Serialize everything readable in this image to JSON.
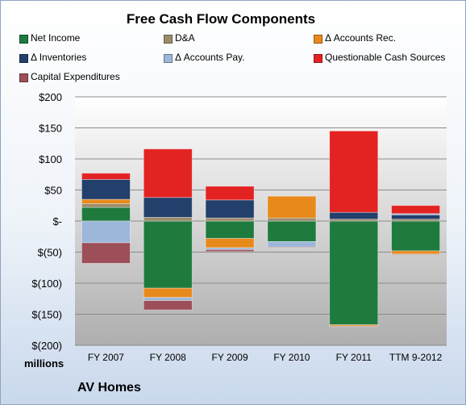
{
  "chart_data": {
    "type": "bar",
    "stacked": true,
    "title": "Free Cash Flow Components",
    "categories": [
      "FY 2007",
      "FY 2008",
      "FY 2009",
      "FY 2010",
      "FY 2011",
      "TTM 9-2012"
    ],
    "ylim": [
      -200,
      200
    ],
    "yticks": [
      200,
      150,
      100,
      50,
      0,
      -50,
      -100,
      -150,
      -200
    ],
    "ytick_labels": [
      "$200",
      "$150",
      "$100",
      "$50",
      "$-",
      "$(50)",
      "$(100)",
      "$(150)",
      "$(200)"
    ],
    "ylabel": "millions",
    "grid": true,
    "legend_position": "top",
    "series": [
      {
        "name": "Net Income",
        "color": "#1f7a3e",
        "values": [
          22,
          -108,
          -28,
          -33,
          -167,
          -48
        ]
      },
      {
        "name": "D&A",
        "color": "#9b8c6c",
        "values": [
          6,
          6,
          5,
          5,
          3,
          3
        ]
      },
      {
        "name": "Δ Accounts Rec.",
        "color": "#e8891c",
        "values": [
          7,
          -15,
          -15,
          35,
          -2,
          -5
        ]
      },
      {
        "name": "Δ Inventories",
        "color": "#233f6b",
        "values": [
          32,
          32,
          29,
          0,
          11,
          7
        ]
      },
      {
        "name": "Δ Accounts Pay.",
        "color": "#9cb7d9",
        "values": [
          -35,
          -5,
          -3,
          -9,
          0,
          2
        ]
      },
      {
        "name": "Questionable Cash Sources",
        "color": "#e32222",
        "values": [
          10,
          78,
          22,
          0,
          131,
          13
        ]
      },
      {
        "name": "Capital Expenditures",
        "color": "#9c4f58",
        "values": [
          -33,
          -15,
          -3,
          -1,
          -1,
          -1
        ]
      }
    ]
  },
  "footer": {
    "units_label": "millions",
    "company": "AV Homes"
  }
}
